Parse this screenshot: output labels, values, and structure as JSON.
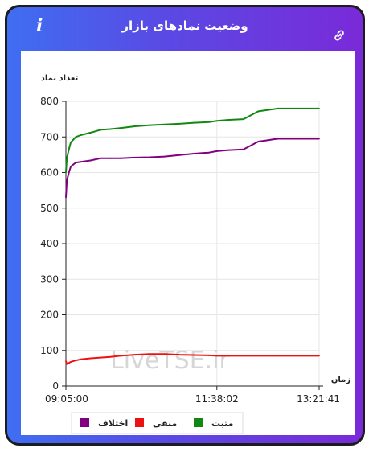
{
  "header": {
    "title": "وضعیت نمادهای بازار",
    "info_icon": "info-icon",
    "link_icon": "link-icon"
  },
  "watermark": "LiveTSE.ir",
  "colors": {
    "positive": "#118811",
    "negative": "#ee1111",
    "difference": "#800080",
    "header_gradient": [
      "#3f6ef2",
      "#7a2ad8"
    ]
  },
  "chart_data": {
    "type": "line",
    "title": "",
    "xlabel": "زمان",
    "ylabel": "تعداد نماد",
    "ylim": [
      0,
      800
    ],
    "y_ticks": [
      0,
      100,
      200,
      300,
      400,
      500,
      600,
      700,
      800
    ],
    "x_range": [
      "09:05:00",
      "13:21:41"
    ],
    "x_ticks": [
      "09:05:00",
      "11:38:02",
      "13:21:41"
    ],
    "grid": true,
    "legend_position": "bottom",
    "x": [
      "09:05:00",
      "09:06:00",
      "09:08:00",
      "09:10:00",
      "09:15:00",
      "09:20:00",
      "09:30:00",
      "09:40:00",
      "09:50:00",
      "10:00:00",
      "10:15:00",
      "10:30:00",
      "10:45:00",
      "11:00:00",
      "11:15:00",
      "11:30:00",
      "11:38:02",
      "11:50:00",
      "12:05:00",
      "12:20:00",
      "12:30:00",
      "12:35:00",
      "12:40:00",
      "12:50:00",
      "13:00:00",
      "13:10:00",
      "13:21:41"
    ],
    "series": [
      {
        "name": "مثبت",
        "color": "#118811",
        "values": [
          600,
          640,
          665,
          685,
          700,
          705,
          712,
          720,
          722,
          725,
          730,
          733,
          735,
          737,
          740,
          742,
          745,
          748,
          750,
          772,
          776,
          778,
          780,
          780,
          780,
          780,
          780
        ]
      },
      {
        "name": "منفی",
        "color": "#ee1111",
        "values": [
          70,
          62,
          65,
          68,
          72,
          75,
          78,
          80,
          82,
          85,
          88,
          90,
          90,
          88,
          87,
          86,
          85,
          85,
          85,
          85,
          85,
          85,
          85,
          85,
          85,
          85,
          85
        ]
      },
      {
        "name": "اختلاف",
        "color": "#800080",
        "values": [
          530,
          578,
          600,
          617,
          628,
          630,
          634,
          640,
          640,
          640,
          642,
          643,
          645,
          649,
          653,
          656,
          660,
          663,
          665,
          687,
          691,
          693,
          695,
          695,
          695,
          695,
          695
        ]
      }
    ]
  }
}
